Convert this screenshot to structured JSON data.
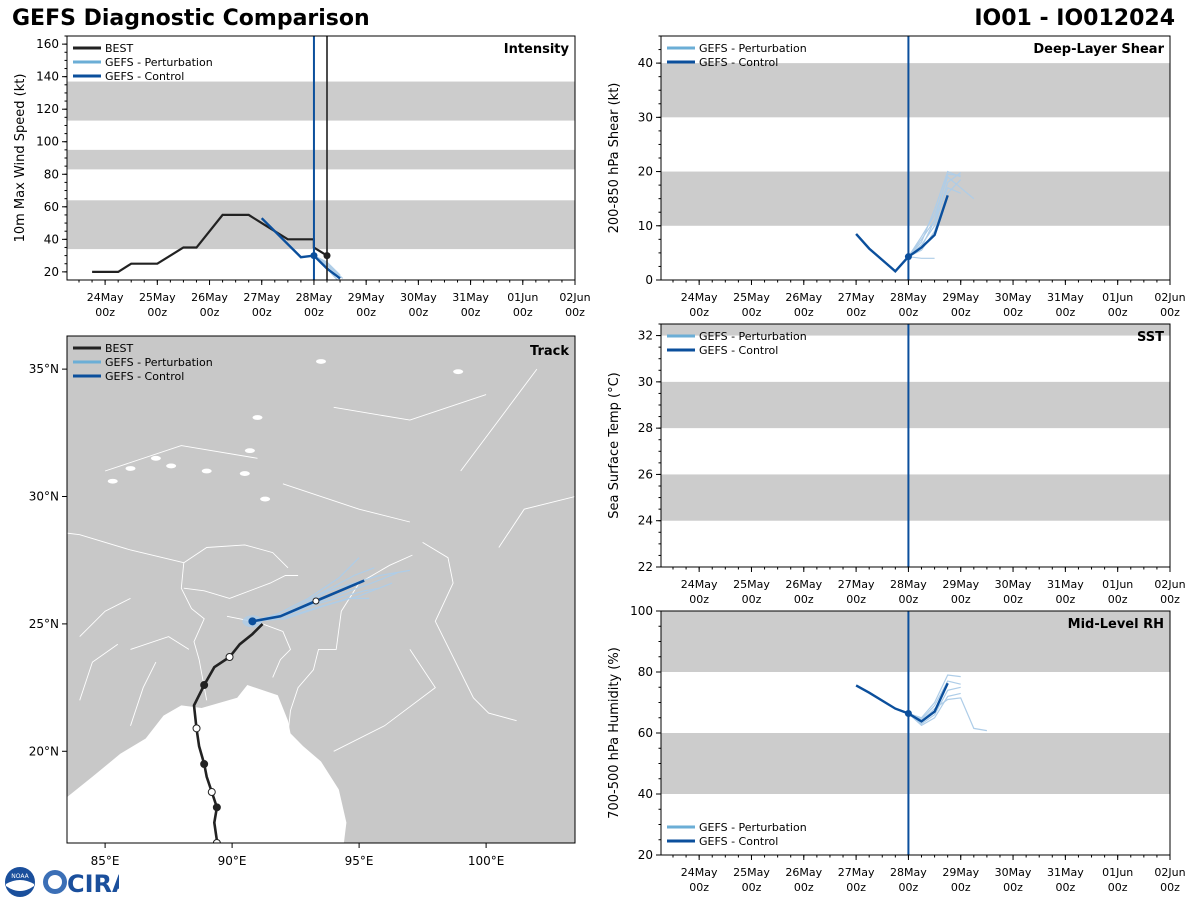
{
  "header": {
    "title_left": "GEFS Diagnostic Comparison",
    "title_right": "IO01 - IO012024"
  },
  "logo": {
    "name": "CIRA",
    "emblem_text": "NOAA"
  },
  "colors": {
    "best": "#222222",
    "perturbation": "#6baed6",
    "perturbation_light": "#aecde8",
    "control": "#0b4f9c",
    "band": "#cccccc",
    "land": "#c8c8c8",
    "border": "#ffffff"
  },
  "time_axis": {
    "start": 0,
    "end": 9.5,
    "ticks": [
      {
        "t": 0.5,
        "l1": "24May",
        "l2": "00z"
      },
      {
        "t": 1.5,
        "l1": "25May",
        "l2": "00z"
      },
      {
        "t": 2.5,
        "l1": "26May",
        "l2": "00z"
      },
      {
        "t": 3.5,
        "l1": "27May",
        "l2": "00z"
      },
      {
        "t": 4.5,
        "l1": "28May",
        "l2": "00z"
      },
      {
        "t": 5.5,
        "l1": "29May",
        "l2": "00z"
      },
      {
        "t": 6.5,
        "l1": "30May",
        "l2": "00z"
      },
      {
        "t": 7.5,
        "l1": "31May",
        "l2": "00z"
      },
      {
        "t": 8.5,
        "l1": "01Jun",
        "l2": "00z"
      },
      {
        "t": 9.5,
        "l1": "02Jun",
        "l2": "00z"
      }
    ],
    "note": "t = days from 23May 12z"
  },
  "chart_data": [
    {
      "id": "intensity",
      "type": "line",
      "title": "Intensity",
      "ylabel": "10m Max Wind Speed (kt)",
      "ylim": [
        15,
        165
      ],
      "yticks": [
        20,
        40,
        60,
        80,
        100,
        120,
        140,
        160
      ],
      "bands": [
        [
          34,
          64
        ],
        [
          83,
          95
        ],
        [
          113,
          137
        ]
      ],
      "init_t": 4.5,
      "best_end_t": 4.75,
      "legend": [
        "BEST",
        "GEFS - Perturbation",
        "GEFS - Control"
      ],
      "best": [
        [
          0.25,
          20
        ],
        [
          0.75,
          20
        ],
        [
          1.0,
          25
        ],
        [
          1.5,
          25
        ],
        [
          1.5,
          25
        ],
        [
          2.0,
          35
        ],
        [
          2.25,
          35
        ],
        [
          2.75,
          55
        ],
        [
          3.25,
          55
        ],
        [
          3.5,
          50
        ],
        [
          4.0,
          40
        ],
        [
          4.5,
          40
        ],
        [
          4.5,
          35
        ],
        [
          4.75,
          30
        ]
      ],
      "best_marker": [
        4.75,
        30
      ],
      "control": [
        [
          3.5,
          53
        ],
        [
          4.25,
          29
        ],
        [
          4.5,
          30
        ],
        [
          4.75,
          22
        ],
        [
          5.0,
          16
        ]
      ],
      "control_marker": [
        4.5,
        30
      ],
      "perturbations": [
        [
          [
            4.5,
            30
          ],
          [
            4.75,
            24
          ],
          [
            5.0,
            17
          ]
        ],
        [
          [
            4.5,
            30
          ],
          [
            4.75,
            26
          ],
          [
            5.0,
            18
          ]
        ],
        [
          [
            4.5,
            30
          ],
          [
            4.75,
            22
          ],
          [
            4.95,
            15
          ]
        ],
        [
          [
            4.5,
            30
          ],
          [
            4.75,
            25
          ],
          [
            5.05,
            16
          ]
        ],
        [
          [
            4.5,
            30
          ],
          [
            4.75,
            23
          ],
          [
            5.0,
            15
          ]
        ]
      ]
    },
    {
      "id": "shear",
      "type": "line",
      "title": "Deep-Layer Shear",
      "ylabel": "200-850 hPa Shear (kt)",
      "ylim": [
        0,
        45
      ],
      "yticks": [
        0,
        10,
        20,
        30,
        40
      ],
      "bands": [
        [
          10,
          20
        ],
        [
          30,
          40
        ]
      ],
      "init_t": 4.5,
      "legend": [
        "GEFS - Perturbation",
        "GEFS - Control"
      ],
      "control": [
        [
          3.5,
          8.5
        ],
        [
          3.75,
          5.8
        ],
        [
          4.25,
          1.6
        ],
        [
          4.5,
          4.3
        ],
        [
          4.75,
          6.0
        ],
        [
          5.0,
          8.3
        ],
        [
          5.25,
          15.6
        ]
      ],
      "control_marker": [
        4.5,
        4.3
      ],
      "perturbations": [
        [
          [
            4.5,
            4.3
          ],
          [
            4.75,
            7.5
          ],
          [
            5.0,
            11
          ],
          [
            5.25,
            19.5
          ],
          [
            5.5,
            19.3
          ]
        ],
        [
          [
            4.5,
            4.3
          ],
          [
            4.75,
            8
          ],
          [
            5.0,
            12
          ],
          [
            5.25,
            19
          ],
          [
            5.5,
            17
          ],
          [
            5.75,
            15
          ]
        ],
        [
          [
            4.5,
            4.3
          ],
          [
            4.75,
            6.5
          ],
          [
            5.0,
            10
          ],
          [
            5.25,
            18
          ],
          [
            5.5,
            19.8
          ]
        ],
        [
          [
            4.5,
            4.3
          ],
          [
            4.75,
            5.5
          ],
          [
            5.0,
            9
          ],
          [
            5.25,
            16
          ],
          [
            5.5,
            18.5
          ]
        ],
        [
          [
            4.5,
            4.3
          ],
          [
            4.75,
            7
          ],
          [
            5.0,
            13
          ],
          [
            5.25,
            20
          ],
          [
            5.5,
            19
          ]
        ],
        [
          [
            4.5,
            4.3
          ],
          [
            4.75,
            4
          ],
          [
            5.0,
            4
          ]
        ],
        [
          [
            4.5,
            4.3
          ],
          [
            4.75,
            6
          ],
          [
            5.0,
            11
          ],
          [
            5.25,
            17
          ],
          [
            5.5,
            16
          ]
        ]
      ]
    },
    {
      "id": "sst",
      "type": "line",
      "title": "SST",
      "ylabel": "Sea Surface Temp (°C)",
      "ylim": [
        22,
        32.5
      ],
      "yticks": [
        22,
        24,
        26,
        28,
        30,
        32
      ],
      "bands": [
        [
          24,
          26
        ],
        [
          28,
          30
        ],
        [
          32,
          32.5
        ]
      ],
      "init_t": 4.5,
      "legend": [
        "GEFS - Perturbation",
        "GEFS - Control"
      ],
      "control": [],
      "perturbations": []
    },
    {
      "id": "rh",
      "type": "line",
      "title": "Mid-Level RH",
      "ylabel": "700-500 hPa Humidity (%)",
      "ylim": [
        20,
        100
      ],
      "yticks": [
        20,
        40,
        60,
        80,
        100
      ],
      "bands": [
        [
          40,
          60
        ],
        [
          80,
          100
        ]
      ],
      "init_t": 4.5,
      "legend": [
        "GEFS - Perturbation",
        "GEFS - Control"
      ],
      "control": [
        [
          3.5,
          75.6
        ],
        [
          3.75,
          73.2
        ],
        [
          4.25,
          68
        ],
        [
          4.5,
          66.4
        ],
        [
          4.75,
          63.8
        ],
        [
          5.0,
          67
        ],
        [
          5.25,
          76.3
        ]
      ],
      "control_marker": [
        4.5,
        66.4
      ],
      "perturbations": [
        [
          [
            4.5,
            66.4
          ],
          [
            4.75,
            65
          ],
          [
            5.0,
            70
          ],
          [
            5.25,
            79
          ],
          [
            5.5,
            78.5
          ]
        ],
        [
          [
            4.5,
            66.4
          ],
          [
            4.75,
            64
          ],
          [
            5.0,
            68
          ],
          [
            5.25,
            71
          ],
          [
            5.5,
            71.5
          ],
          [
            5.75,
            61.5
          ],
          [
            6.0,
            60.8
          ]
        ],
        [
          [
            4.5,
            66.4
          ],
          [
            4.75,
            63
          ],
          [
            5.0,
            66
          ],
          [
            5.25,
            74
          ],
          [
            5.5,
            75
          ]
        ],
        [
          [
            4.5,
            66.4
          ],
          [
            4.75,
            64.5
          ],
          [
            5.0,
            69
          ],
          [
            5.25,
            77
          ],
          [
            5.5,
            76
          ]
        ],
        [
          [
            4.5,
            66.4
          ],
          [
            4.75,
            62.5
          ],
          [
            5.0,
            65
          ],
          [
            5.25,
            72
          ],
          [
            5.5,
            73
          ]
        ]
      ]
    },
    {
      "id": "track",
      "type": "line",
      "title": "Track",
      "lon_range": [
        83.5,
        103.5
      ],
      "lat_range": [
        16.4,
        36.3
      ],
      "xticks": [
        {
          "v": 85,
          "label": "85°E"
        },
        {
          "v": 90,
          "label": "90°E"
        },
        {
          "v": 95,
          "label": "95°E"
        },
        {
          "v": 100,
          "label": "100°E"
        }
      ],
      "yticks": [
        {
          "v": 20,
          "label": "20°N"
        },
        {
          "v": 25,
          "label": "25°N"
        },
        {
          "v": 30,
          "label": "30°N"
        },
        {
          "v": 35,
          "label": "35°N"
        }
      ],
      "legend": [
        "BEST",
        "GEFS - Perturbation",
        "GEFS - Control"
      ],
      "best": [
        [
          89.4,
          16.5
        ],
        [
          89.3,
          17.2
        ],
        [
          89.4,
          17.8
        ],
        [
          89.2,
          18.4
        ],
        [
          89.0,
          19.0
        ],
        [
          88.9,
          19.5
        ],
        [
          88.7,
          20.2
        ],
        [
          88.6,
          20.9
        ],
        [
          88.5,
          21.8
        ],
        [
          88.9,
          22.6
        ],
        [
          89.3,
          23.3
        ],
        [
          89.9,
          23.7
        ],
        [
          90.3,
          24.2
        ],
        [
          90.8,
          24.6
        ],
        [
          91.2,
          25.0
        ]
      ],
      "best_points": [
        {
          "lon": 89.4,
          "lat": 16.4,
          "filled": false
        },
        {
          "lon": 89.4,
          "lat": 17.8,
          "filled": true
        },
        {
          "lon": 89.2,
          "lat": 18.4,
          "filled": false
        },
        {
          "lon": 88.9,
          "lat": 19.5,
          "filled": true
        },
        {
          "lon": 88.6,
          "lat": 20.9,
          "filled": false
        },
        {
          "lon": 88.9,
          "lat": 22.6,
          "filled": true
        },
        {
          "lon": 89.9,
          "lat": 23.7,
          "filled": false
        }
      ],
      "control": [
        [
          90.8,
          25.1
        ],
        [
          91.9,
          25.3
        ],
        [
          93.3,
          25.9
        ],
        [
          95.2,
          26.7
        ]
      ],
      "control_marker": [
        90.8,
        25.1
      ],
      "control_open_point": [
        93.3,
        25.9
      ],
      "perturbations": [
        [
          [
            90.8,
            25.1
          ],
          [
            92.0,
            25.3
          ],
          [
            93.5,
            25.9
          ],
          [
            95.5,
            26.6
          ],
          [
            96.5,
            27.0
          ]
        ],
        [
          [
            90.8,
            25.1
          ],
          [
            92.0,
            25.4
          ],
          [
            93.5,
            26.2
          ],
          [
            94.8,
            26.9
          ],
          [
            95.6,
            27.2
          ]
        ],
        [
          [
            90.8,
            25.1
          ],
          [
            92.1,
            25.2
          ],
          [
            93.6,
            25.7
          ],
          [
            95.0,
            26.1
          ],
          [
            96.3,
            26.6
          ]
        ],
        [
          [
            90.8,
            25.1
          ],
          [
            91.8,
            25.4
          ],
          [
            93.0,
            26.0
          ],
          [
            94.2,
            26.8
          ],
          [
            95.0,
            27.6
          ]
        ],
        [
          [
            90.8,
            25.1
          ],
          [
            92.0,
            25.3
          ],
          [
            93.4,
            25.8
          ],
          [
            95.2,
            26.3
          ],
          [
            95.8,
            26.4
          ]
        ],
        [
          [
            90.8,
            25.1
          ],
          [
            92.2,
            25.4
          ],
          [
            93.8,
            26.3
          ],
          [
            95.8,
            26.9
          ],
          [
            97.0,
            27.1
          ]
        ],
        [
          [
            90.8,
            25.1
          ],
          [
            91.9,
            25.2
          ],
          [
            93.2,
            25.6
          ],
          [
            94.6,
            26.0
          ],
          [
            95.4,
            26.0
          ]
        ]
      ]
    }
  ]
}
